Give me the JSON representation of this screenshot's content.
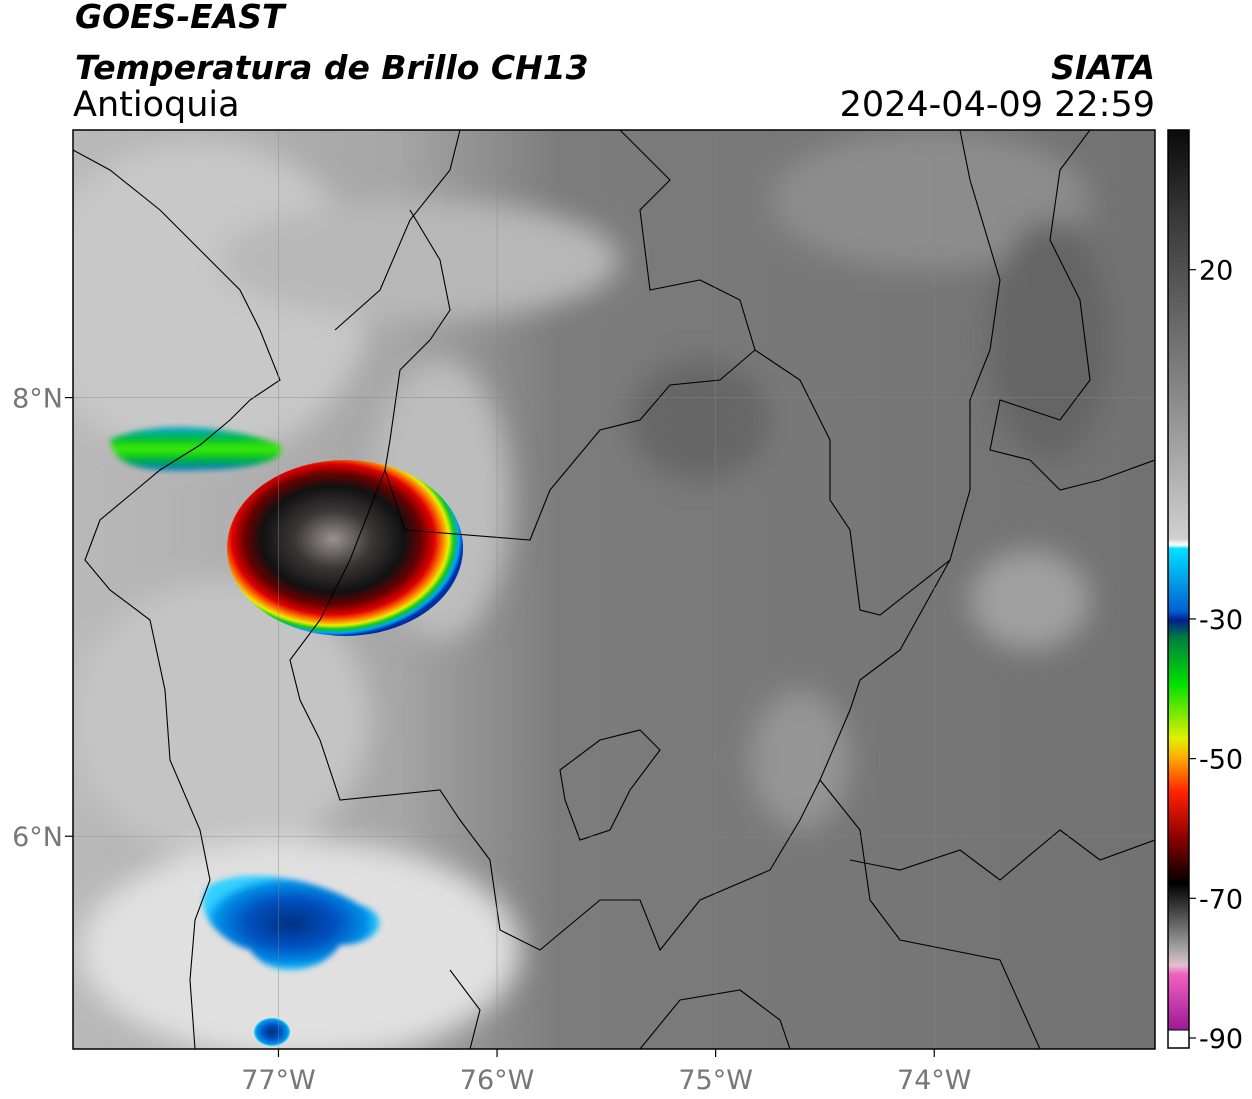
{
  "header": {
    "title": "GOES-EAST",
    "subtitle": "Temperatura de Brillo CH13",
    "region": "Antioquia",
    "source": "SIATA",
    "datetime": "2024-04-09 22:59"
  },
  "map": {
    "xlim": [
      -77.94,
      -72.99
    ],
    "ylim": [
      5.03,
      9.22
    ],
    "xticks": [
      {
        "value": -77,
        "label": "77°W"
      },
      {
        "value": -76,
        "label": "76°W"
      },
      {
        "value": -75,
        "label": "75°W"
      },
      {
        "value": -74,
        "label": "74°W"
      }
    ],
    "yticks": [
      {
        "value": 8,
        "label": "8°N"
      },
      {
        "value": 6,
        "label": "6°N"
      }
    ]
  },
  "colorbar": {
    "ylim": [
      -90,
      40
    ],
    "ticks": [
      20,
      -30,
      -50,
      -70,
      -90
    ]
  }
}
